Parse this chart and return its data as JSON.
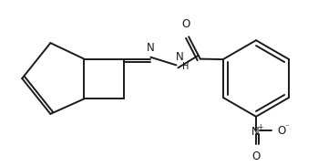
{
  "background_color": "#ffffff",
  "line_color": "#1a1a1a",
  "line_width": 1.4,
  "font_size": 8.5,
  "atoms": {
    "N_label": "N",
    "NH_label": "N\nH",
    "O_label": "O",
    "Nplus_label": "N",
    "Ominus_label": "O",
    "O2_label": "O"
  }
}
